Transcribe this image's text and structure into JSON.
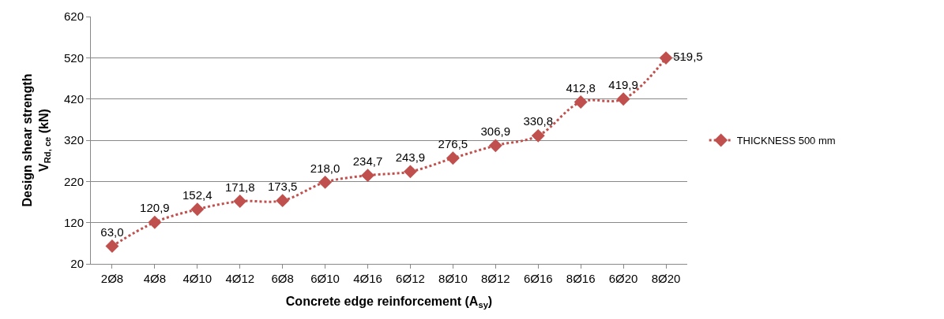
{
  "chart_data": {
    "type": "line",
    "xlabel": "Concrete edge reinforcement (A$_{sy}$)",
    "ylabel": "Design shear strength\nV$_{Rd, ce}$ (kN)",
    "categories": [
      "2Ø8",
      "4Ø8",
      "4Ø10",
      "4Ø12",
      "6Ø8",
      "6Ø10",
      "4Ø16",
      "6Ø12",
      "8Ø10",
      "8Ø12",
      "6Ø16",
      "8Ø16",
      "6Ø20",
      "8Ø20"
    ],
    "series": [
      {
        "name": "THICKNESS 500 mm",
        "color": "#c0504d",
        "values": [
          63.0,
          120.9,
          152.4,
          171.8,
          173.5,
          218.0,
          234.7,
          243.9,
          276.5,
          306.9,
          330.8,
          412.8,
          419.9,
          519.5
        ],
        "value_labels": [
          "63,0",
          "120,9",
          "152,4",
          "171,8",
          "173,5",
          "218,0",
          "234,7",
          "243,9",
          "276,5",
          "306,9",
          "330,8",
          "412,8",
          "419,9",
          "519,5"
        ]
      }
    ],
    "ylim": [
      20,
      620
    ],
    "yticks": [
      20,
      120,
      220,
      320,
      420,
      520,
      620
    ],
    "grid": "y",
    "legend": "right",
    "marker": "diamond",
    "line_style": "dotted"
  }
}
